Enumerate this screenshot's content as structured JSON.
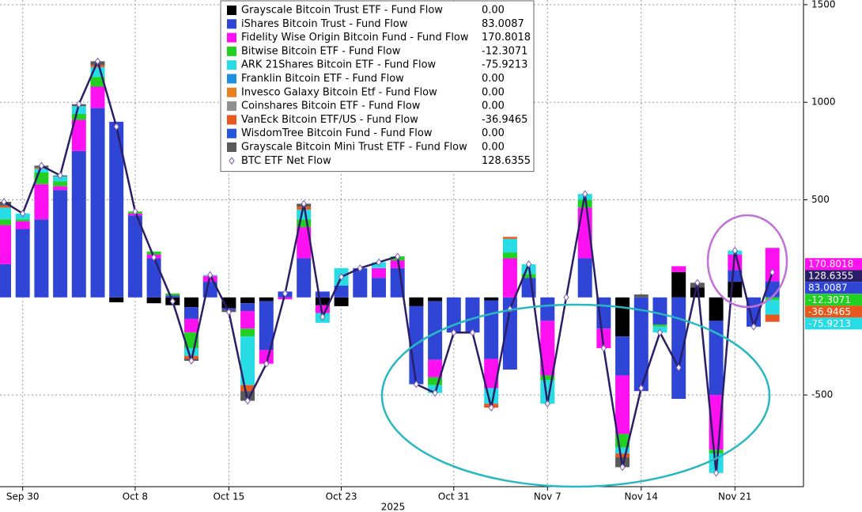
{
  "chart_data": {
    "type": "bar",
    "xlabel": "2025",
    "categories": [
      null,
      "Sep 30",
      null,
      null,
      null,
      null,
      null,
      "Oct 8",
      null,
      null,
      null,
      null,
      "Oct 15",
      null,
      null,
      null,
      null,
      null,
      "Oct 23",
      null,
      null,
      null,
      null,
      null,
      "Oct 31",
      null,
      null,
      null,
      null,
      "Nov 7",
      null,
      null,
      null,
      null,
      "Nov 14",
      null,
      null,
      null,
      null,
      "Nov 21",
      null,
      null
    ],
    "ylim": [
      -970,
      1524
    ],
    "yticks": [
      -500,
      500,
      1000,
      1500
    ],
    "grid": true,
    "series": [
      {
        "name": "Grayscale Bitcoin Trust ETF - Fund Flow",
        "color": "#000000",
        "legend_value_label": "0.00",
        "values": [
          0,
          0,
          0,
          0,
          0,
          0,
          -25,
          0,
          -30,
          -40,
          -50,
          0,
          -55,
          -30,
          -20,
          0,
          0,
          -40,
          -45,
          0,
          0,
          0,
          -45,
          -20,
          0,
          0,
          -15,
          0,
          0,
          0,
          0,
          0,
          0,
          -200,
          0,
          0,
          130,
          50,
          -120,
          80,
          0,
          0
        ]
      },
      {
        "name": "iShares Bitcoin Trust - Fund Flow",
        "color": "#2f45d6",
        "legend_value_label": "83.0087",
        "values": [
          170,
          350,
          400,
          550,
          750,
          970,
          900,
          420,
          200,
          10,
          -60,
          80,
          -10,
          -40,
          -250,
          30,
          200,
          30,
          60,
          150,
          100,
          150,
          -400,
          -300,
          -180,
          -180,
          -300,
          -370,
          100,
          -120,
          0,
          200,
          -160,
          -200,
          -480,
          -140,
          -520,
          0,
          -380,
          60,
          -150,
          83.0087
        ]
      },
      {
        "name": "Fidelity Wise Origin Bitcoin Fund - Fund Flow",
        "color": "#ff10f0",
        "legend_value_label": "170.8018",
        "values": [
          200,
          40,
          180,
          20,
          160,
          110,
          0,
          10,
          20,
          0,
          -70,
          30,
          0,
          -90,
          -70,
          -10,
          160,
          -40,
          0,
          0,
          50,
          40,
          0,
          -90,
          0,
          0,
          -150,
          200,
          0,
          -280,
          0,
          260,
          -100,
          -300,
          0,
          0,
          30,
          0,
          -280,
          80,
          0,
          170.8018
        ]
      },
      {
        "name": "Bitwise Bitcoin ETF - Fund Flow",
        "color": "#22d022",
        "legend_value_label": "-12.3071",
        "values": [
          30,
          10,
          60,
          25,
          30,
          50,
          0,
          10,
          15,
          10,
          -80,
          0,
          0,
          -40,
          0,
          0,
          40,
          0,
          0,
          0,
          0,
          20,
          0,
          -40,
          0,
          0,
          0,
          30,
          20,
          -25,
          0,
          40,
          0,
          -70,
          0,
          -10,
          0,
          0,
          -20,
          0,
          0,
          -12.3071
        ]
      },
      {
        "name": "ARK 21Shares Bitcoin ETF - Fund Flow",
        "color": "#28dce6",
        "legend_value_label": "-75.9213",
        "values": [
          60,
          30,
          20,
          25,
          40,
          50,
          0,
          0,
          0,
          0,
          -40,
          5,
          0,
          -250,
          0,
          0,
          50,
          -50,
          90,
          0,
          30,
          0,
          0,
          -40,
          0,
          0,
          -80,
          70,
          50,
          -120,
          0,
          30,
          0,
          -30,
          0,
          -30,
          0,
          0,
          -100,
          20,
          0,
          -75.9213
        ]
      },
      {
        "name": "Franklin Bitcoin ETF - Fund Flow",
        "color": "#1e8fe0",
        "legend_value_label": "0.00",
        "values": [
          0,
          0,
          0,
          0,
          0,
          0,
          0,
          0,
          0,
          0,
          0,
          0,
          0,
          0,
          0,
          0,
          0,
          0,
          0,
          0,
          0,
          0,
          0,
          0,
          0,
          0,
          0,
          0,
          0,
          0,
          0,
          0,
          0,
          0,
          0,
          0,
          0,
          0,
          0,
          0,
          0,
          0
        ]
      },
      {
        "name": "Invesco Galaxy Bitcoin Etf - Fund Flow",
        "color": "#e8801e",
        "legend_value_label": "0.00",
        "values": [
          0,
          0,
          0,
          0,
          0,
          0,
          0,
          0,
          0,
          0,
          0,
          0,
          0,
          0,
          0,
          0,
          0,
          0,
          0,
          0,
          0,
          0,
          0,
          0,
          0,
          0,
          0,
          0,
          0,
          0,
          0,
          0,
          0,
          0,
          0,
          0,
          0,
          0,
          0,
          0,
          0,
          0
        ]
      },
      {
        "name": "Coinshares Bitcoin ETF - Fund Flow",
        "color": "#909090",
        "legend_value_label": "0.00",
        "values": [
          0,
          0,
          0,
          0,
          0,
          0,
          0,
          0,
          0,
          0,
          0,
          0,
          0,
          0,
          0,
          0,
          0,
          0,
          0,
          0,
          0,
          0,
          0,
          0,
          0,
          0,
          0,
          0,
          0,
          0,
          0,
          0,
          0,
          0,
          0,
          0,
          0,
          0,
          0,
          0,
          0,
          0
        ]
      },
      {
        "name": "VanEck Bitcoin ETF/US - Fund Flow",
        "color": "#e8581e",
        "legend_value_label": "-36.9465",
        "values": [
          10,
          0,
          5,
          0,
          0,
          10,
          0,
          0,
          0,
          0,
          -15,
          0,
          0,
          -30,
          0,
          0,
          15,
          0,
          0,
          0,
          0,
          0,
          0,
          0,
          0,
          0,
          -20,
          10,
          0,
          0,
          0,
          0,
          0,
          -20,
          0,
          0,
          0,
          0,
          0,
          0,
          0,
          -36.9465
        ]
      },
      {
        "name": "WisdomTree Bitcoin Fund - Fund Flow",
        "color": "#2456de",
        "legend_value_label": "0.00",
        "values": [
          0,
          0,
          0,
          0,
          0,
          0,
          0,
          0,
          0,
          0,
          0,
          0,
          0,
          0,
          0,
          0,
          0,
          0,
          0,
          0,
          0,
          0,
          0,
          0,
          0,
          0,
          0,
          0,
          0,
          0,
          0,
          0,
          0,
          0,
          0,
          0,
          0,
          0,
          0,
          0,
          0,
          0
        ]
      },
      {
        "name": "Grayscale Bitcoin Mini Trust ETF - Fund Flow",
        "color": "#5a5a5a",
        "legend_value_label": "0.00",
        "values": [
          20,
          0,
          10,
          5,
          10,
          20,
          0,
          0,
          0,
          0,
          -10,
          0,
          -10,
          -50,
          0,
          0,
          15,
          0,
          0,
          0,
          0,
          0,
          0,
          0,
          0,
          0,
          0,
          0,
          0,
          0,
          0,
          0,
          0,
          -50,
          15,
          0,
          0,
          25,
          0,
          0,
          0,
          0
        ]
      }
    ],
    "line": {
      "name": "BTC ETF Net Flow",
      "color": "#2a1f66",
      "legend_value_label": "128.6355",
      "values": [
        490,
        430,
        675,
        625,
        990,
        1210,
        875,
        440,
        205,
        -20,
        -325,
        115,
        -75,
        -530,
        -340,
        20,
        480,
        -100,
        105,
        150,
        180,
        210,
        -445,
        -490,
        -180,
        -180,
        -565,
        -60,
        170,
        -545,
        0,
        530,
        -260,
        -870,
        -465,
        -180,
        -360,
        75,
        -900,
        240,
        -150,
        128.6355
      ]
    }
  }
}
